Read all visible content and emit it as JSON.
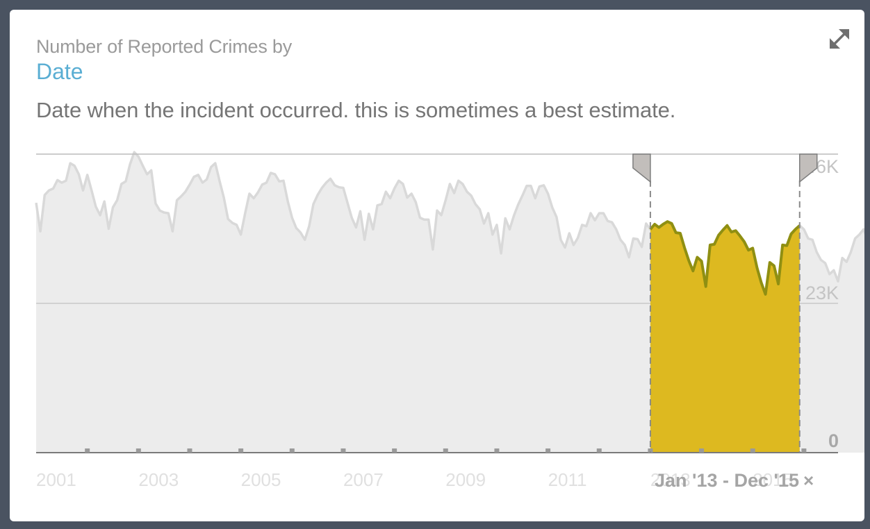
{
  "card": {
    "subtitle": "Number of Reported Crimes by",
    "title": "Date",
    "description": "Date when the incident occurred. this is sometimes a best estimate."
  },
  "icons": {
    "expand": "expand-arrows-icon",
    "clear": "close-icon"
  },
  "selection": {
    "label": "Jan '13 - Dec '15",
    "clear_symbol": "×"
  },
  "colors": {
    "highlight_fill": "#ddb920",
    "highlight_line": "#8f8f12",
    "base_fill": "#ececec",
    "base_line": "#d9d9d9",
    "tick_label": "#e0e0e0",
    "axis_label": "#c4c4c4"
  },
  "chart_data": {
    "type": "area",
    "x_ticks": [
      "2001",
      "2003",
      "2005",
      "2007",
      "2009",
      "2011",
      "2013",
      "2015"
    ],
    "y_ticks": [
      "0",
      "23K",
      "46K"
    ],
    "ylim": [
      0,
      46000
    ],
    "xlim": [
      "2001-01",
      "2016-09"
    ],
    "selection_range": [
      "2013-01",
      "2015-12"
    ],
    "start_month": "2001-01",
    "values": [
      38500,
      34100,
      39700,
      40400,
      40700,
      42000,
      41600,
      41900,
      44600,
      44200,
      42900,
      40400,
      42800,
      40400,
      37900,
      36600,
      38700,
      34500,
      37800,
      38900,
      41400,
      41800,
      44400,
      46300,
      45600,
      44200,
      42900,
      43500,
      38400,
      37300,
      37000,
      36900,
      34100,
      38900,
      39500,
      40200,
      41300,
      42500,
      42800,
      41600,
      42100,
      44000,
      44600,
      41900,
      39300,
      36000,
      35400,
      35100,
      33600,
      36900,
      39900,
      39200,
      40100,
      41300,
      41600,
      43100,
      42900,
      41800,
      41900,
      38700,
      36200,
      34600,
      33900,
      32800,
      34900,
      38300,
      39700,
      40800,
      41600,
      42200,
      41200,
      40900,
      40800,
      38500,
      36200,
      34700,
      37200,
      32800,
      36800,
      34400,
      38100,
      38300,
      40200,
      39200,
      40700,
      41900,
      41400,
      39300,
      39900,
      38600,
      36200,
      35900,
      35900,
      31300,
      37300,
      36600,
      38900,
      41400,
      40000,
      41900,
      41400,
      40200,
      39600,
      38300,
      37500,
      35300,
      36900,
      33600,
      35100,
      30700,
      36100,
      34400,
      36500,
      38200,
      39600,
      41100,
      41100,
      39200,
      41000,
      41200,
      39900,
      37800,
      36300,
      32800,
      31600,
      33800,
      32000,
      33100,
      35100,
      34900,
      36900,
      35800,
      36900,
      36900,
      35700,
      35500,
      34400,
      32800,
      32000,
      30100,
      33000,
      32900,
      31700,
      35300,
      34400,
      35200,
      34700,
      35200,
      35600,
      35300,
      33900,
      33800,
      31600,
      29600,
      28000,
      30100,
      29500,
      25600,
      32000,
      32100,
      33500,
      34300,
      35000,
      34000,
      34200,
      33400,
      32500,
      31200,
      31500,
      28500,
      26200,
      24400,
      29300,
      28800,
      26000,
      32000,
      31900,
      33700,
      34400,
      35000,
      34400,
      33000,
      32800,
      30900,
      29700,
      29200,
      27500,
      28100,
      26400,
      30000,
      29400,
      30900,
      33000,
      33600,
      34400,
      32700,
      30300,
      28800,
      25900,
      24200,
      22400,
      20300,
      17800,
      23300,
      28400,
      24700,
      29600,
      30100,
      31900,
      32600,
      33300,
      33000,
      34400,
      34400,
      33000,
      30700,
      29600,
      27900,
      26500,
      24000,
      21900,
      25400,
      27000,
      27100,
      28500,
      29100,
      30600,
      31900,
      32600,
      32100,
      32000,
      29700,
      29900,
      29000,
      26700,
      26100,
      26500,
      25400,
      21100,
      25100,
      25500,
      28000,
      27400,
      28900,
      29300,
      29400,
      28500,
      27600,
      27500,
      25600,
      26100,
      25900,
      25600,
      23900,
      21600,
      23600,
      25000,
      24300,
      26100,
      25100,
      27300,
      28200,
      28700,
      28500,
      26600,
      18900,
      13100
    ]
  }
}
